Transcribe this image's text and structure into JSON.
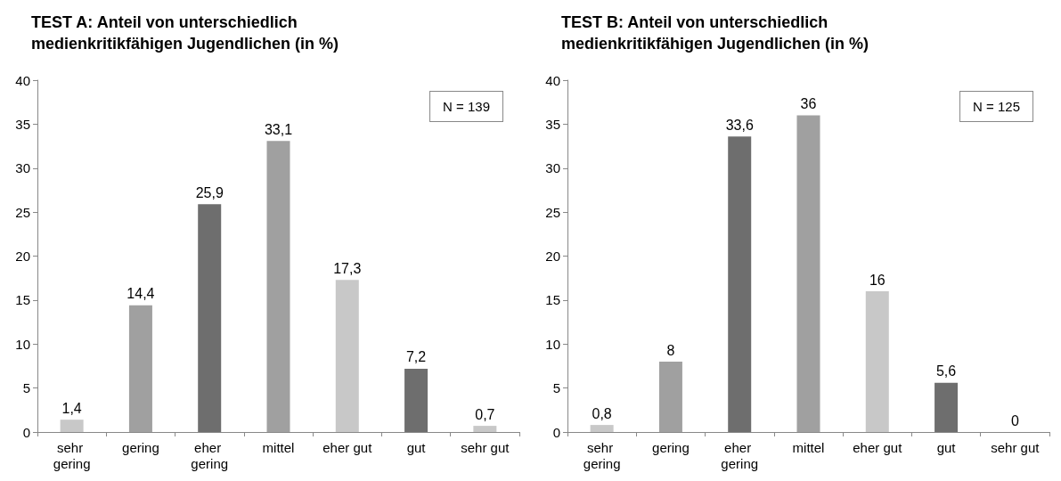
{
  "chart_data": [
    {
      "type": "bar",
      "title": "TEST A: Anteil von unterschiedlich medienkritikfähigen Jugendlichen (in %)",
      "categories": [
        "sehr gering",
        "gering",
        "eher gering",
        "mittel",
        "eher gut",
        "gut",
        "sehr gut"
      ],
      "values": [
        1.4,
        14.4,
        25.9,
        33.1,
        17.3,
        7.2,
        0.7
      ],
      "value_labels": [
        "1,4",
        "14,4",
        "25,9",
        "33,1",
        "17,3",
        "7,2",
        "0,7"
      ],
      "colors": [
        "#c8c8c8",
        "#a0a0a0",
        "#6e6e6e",
        "#a0a0a0",
        "#c8c8c8",
        "#6e6e6e",
        "#c8c8c8"
      ],
      "ylim": [
        0,
        40
      ],
      "yticks": [
        0,
        5,
        10,
        15,
        20,
        25,
        30,
        35,
        40
      ],
      "annotations": [
        "N = 139"
      ]
    },
    {
      "type": "bar",
      "title": "TEST B: Anteil von unterschiedlich medienkritikfähigen Jugendlichen (in %)",
      "categories": [
        "sehr gering",
        "gering",
        "eher gering",
        "mittel",
        "eher gut",
        "gut",
        "sehr gut"
      ],
      "values": [
        0.8,
        8,
        33.6,
        36,
        16,
        5.6,
        0
      ],
      "value_labels": [
        "0,8",
        "8",
        "33,6",
        "36",
        "16",
        "5,6",
        "0"
      ],
      "colors": [
        "#c8c8c8",
        "#a0a0a0",
        "#6e6e6e",
        "#a0a0a0",
        "#c8c8c8",
        "#6e6e6e",
        "#c8c8c8"
      ],
      "ylim": [
        0,
        40
      ],
      "yticks": [
        0,
        5,
        10,
        15,
        20,
        25,
        30,
        35,
        40
      ],
      "annotations": [
        "N = 125"
      ]
    }
  ]
}
